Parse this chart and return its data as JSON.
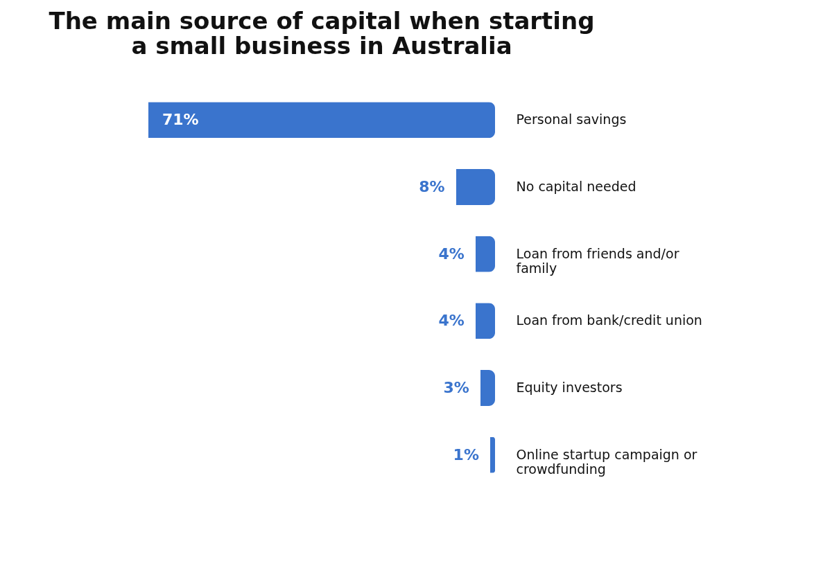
{
  "chart_data": {
    "type": "bar",
    "orientation": "horizontal",
    "title": "The main source of capital when starting a small business in Australia",
    "categories": [
      "Personal savings",
      "No capital needed",
      "Loan from friends and/or family",
      "Loan from bank/credit union",
      "Equity investors",
      "Online startup campaign or crowdfunding"
    ],
    "values": [
      71,
      8,
      4,
      4,
      3,
      1
    ],
    "value_labels": [
      "71%",
      "8%",
      "4%",
      "4%",
      "3%",
      "1%"
    ],
    "color": "#3a74cd",
    "grid": false
  }
}
